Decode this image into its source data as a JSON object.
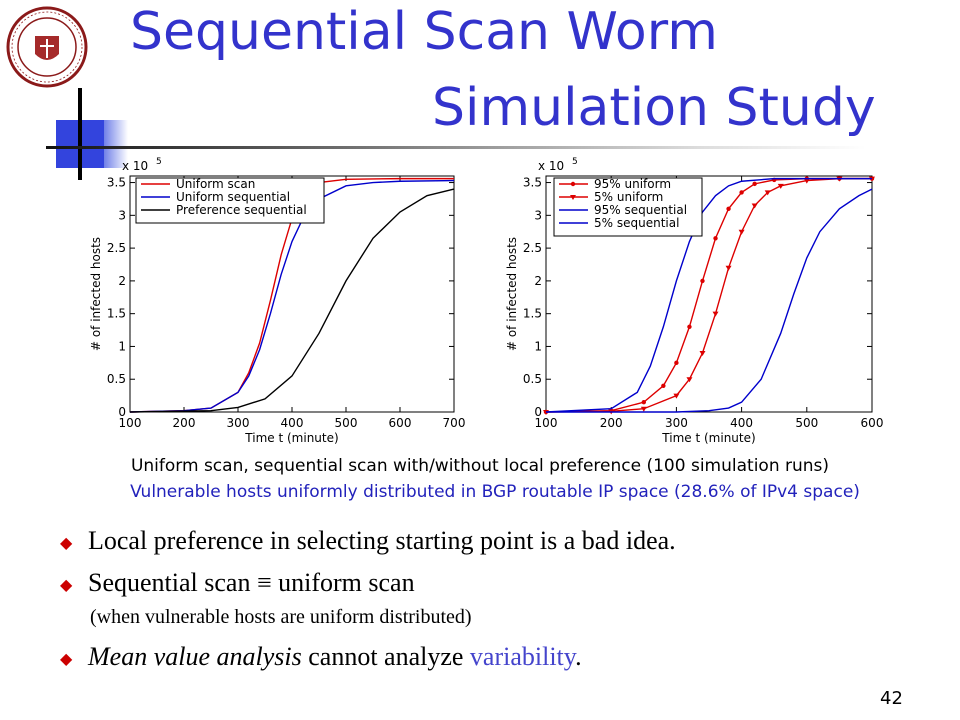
{
  "slide": {
    "title_line1": "Sequential Scan Worm",
    "title_line2": "Simulation Study",
    "caption_line1": "Uniform scan, sequential scan with/without local preference (100 simulation runs)",
    "caption_line2": "Vulnerable hosts uniformly distributed in BGP routable IP space (28.6% of IPv4 space)",
    "bullets": [
      {
        "text": "Local preference in selecting starting point is a bad idea."
      },
      {
        "prefix": "Sequential scan ",
        "symbol": "≡",
        "suffix": " uniform scan"
      },
      {
        "italic": "Mean value analysis",
        "middle": " cannot analyze ",
        "highlight": "variability",
        "end": "."
      }
    ],
    "sub_bullet": "(when vulnerable hosts are uniform distributed)",
    "page_number": "42",
    "bullet_icon": "diamond-bullet-icon",
    "seal_icon": "university-seal-icon",
    "accent_color": "#3333cc",
    "bullet_color": "#cc0000"
  },
  "chart_data": [
    {
      "type": "line",
      "xlabel": "Time t (minute)",
      "ylabel": "# of infected hosts",
      "y_multiplier": "x 10",
      "y_exponent": "5",
      "xlim": [
        100,
        700
      ],
      "ylim": [
        0,
        3.6
      ],
      "xticks": [
        100,
        200,
        300,
        400,
        500,
        600,
        700
      ],
      "yticks": [
        0,
        0.5,
        1,
        1.5,
        2,
        2.5,
        3,
        3.5
      ],
      "legend_position": "top-right",
      "series": [
        {
          "name": "Uniform scan",
          "color": "#dd0000",
          "marker": "none",
          "x": [
            100,
            200,
            250,
            300,
            320,
            340,
            360,
            380,
            400,
            420,
            450,
            500,
            600,
            700
          ],
          "y": [
            0,
            0.02,
            0.06,
            0.3,
            0.6,
            1.05,
            1.7,
            2.4,
            2.95,
            3.3,
            3.5,
            3.55,
            3.56,
            3.56
          ]
        },
        {
          "name": "Uniform sequential",
          "color": "#0000cc",
          "marker": "none",
          "x": [
            100,
            200,
            250,
            300,
            320,
            340,
            360,
            380,
            400,
            420,
            450,
            500,
            550,
            600,
            700
          ],
          "y": [
            0,
            0.02,
            0.06,
            0.3,
            0.55,
            0.95,
            1.5,
            2.1,
            2.6,
            2.95,
            3.25,
            3.45,
            3.5,
            3.52,
            3.53
          ]
        },
        {
          "name": "Preference sequential",
          "color": "#000000",
          "marker": "none",
          "x": [
            100,
            250,
            300,
            350,
            400,
            450,
            500,
            550,
            600,
            650,
            700
          ],
          "y": [
            0,
            0.02,
            0.07,
            0.2,
            0.55,
            1.2,
            2.0,
            2.65,
            3.05,
            3.3,
            3.4
          ]
        }
      ]
    },
    {
      "type": "line",
      "xlabel": "Time t (minute)",
      "ylabel": "# of infected hosts",
      "y_multiplier": "x 10",
      "y_exponent": "5",
      "xlim": [
        100,
        600
      ],
      "ylim": [
        0,
        3.6
      ],
      "xticks": [
        100,
        200,
        300,
        400,
        500,
        600
      ],
      "yticks": [
        0,
        0.5,
        1,
        1.5,
        2,
        2.5,
        3,
        3.5
      ],
      "legend_position": "top-left",
      "series": [
        {
          "name": "95% uniform",
          "color": "#dd0000",
          "marker": "dot",
          "x": [
            100,
            200,
            250,
            280,
            300,
            320,
            340,
            360,
            380,
            400,
            420,
            450,
            500,
            550,
            600
          ],
          "y": [
            0,
            0.02,
            0.15,
            0.4,
            0.75,
            1.3,
            2.0,
            2.65,
            3.1,
            3.35,
            3.48,
            3.54,
            3.56,
            3.56,
            3.56
          ]
        },
        {
          "name": "5% uniform",
          "color": "#dd0000",
          "marker": "triangle",
          "x": [
            100,
            200,
            250,
            300,
            320,
            340,
            360,
            380,
            400,
            420,
            440,
            460,
            500,
            550,
            600
          ],
          "y": [
            0,
            0.01,
            0.05,
            0.25,
            0.5,
            0.9,
            1.5,
            2.2,
            2.75,
            3.15,
            3.35,
            3.45,
            3.53,
            3.56,
            3.56
          ]
        },
        {
          "name": "95% sequential",
          "color": "#0000cc",
          "marker": "none",
          "x": [
            100,
            200,
            240,
            260,
            280,
            300,
            320,
            340,
            360,
            380,
            400,
            450,
            500,
            600
          ],
          "y": [
            0,
            0.05,
            0.3,
            0.7,
            1.3,
            2.0,
            2.6,
            3.05,
            3.3,
            3.45,
            3.52,
            3.56,
            3.56,
            3.56
          ]
        },
        {
          "name": "5% sequential",
          "color": "#0000cc",
          "marker": "none",
          "x": [
            100,
            300,
            350,
            380,
            400,
            430,
            460,
            480,
            500,
            520,
            550,
            580,
            600
          ],
          "y": [
            0,
            0.0,
            0.02,
            0.06,
            0.15,
            0.5,
            1.2,
            1.8,
            2.35,
            2.75,
            3.1,
            3.3,
            3.4
          ]
        }
      ]
    }
  ]
}
